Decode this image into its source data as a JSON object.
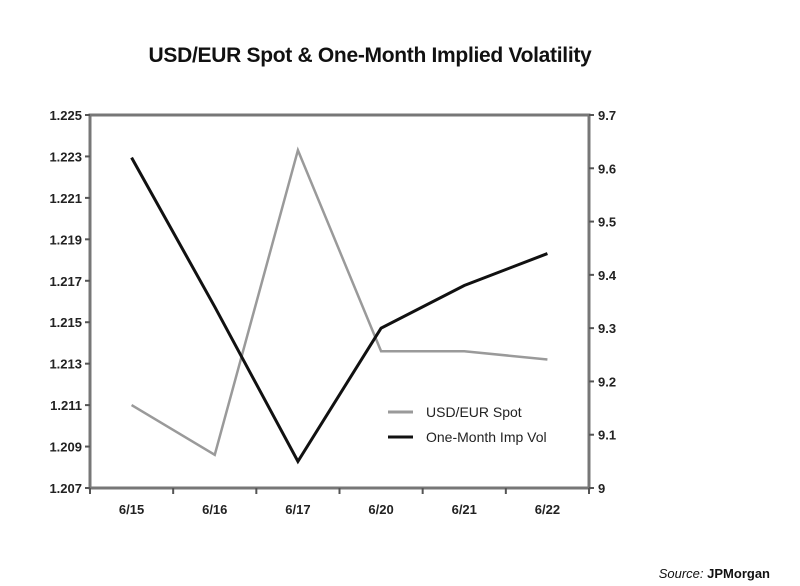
{
  "chart_data": {
    "type": "line",
    "title": "USD/EUR Spot & One-Month Implied Volatility",
    "categories": [
      "6/15",
      "6/16",
      "6/17",
      "6/20",
      "6/21",
      "6/22"
    ],
    "series": [
      {
        "name": "USD/EUR Spot",
        "axis": "left",
        "color": "#9a9a9a",
        "values": [
          1.211,
          1.2086,
          1.2233,
          1.2136,
          1.2136,
          1.2132
        ]
      },
      {
        "name": "One-Month Imp Vol",
        "axis": "right",
        "color": "#111111",
        "values": [
          9.62,
          9.34,
          9.05,
          9.3,
          9.38,
          9.44
        ]
      }
    ],
    "left_axis": {
      "ylim": [
        1.207,
        1.225
      ],
      "ticks": [
        "1.207",
        "1.209",
        "1.211",
        "1.213",
        "1.215",
        "1.217",
        "1.219",
        "1.221",
        "1.223",
        "1.225"
      ]
    },
    "right_axis": {
      "ylim": [
        9,
        9.7
      ],
      "ticks": [
        "9",
        "9.1",
        "9.2",
        "9.3",
        "9.4",
        "9.5",
        "9.6",
        "9.7"
      ]
    },
    "legend": "bottom-right-inside",
    "grid": false,
    "source_label": "Source:",
    "source_org": "JPMorgan"
  }
}
